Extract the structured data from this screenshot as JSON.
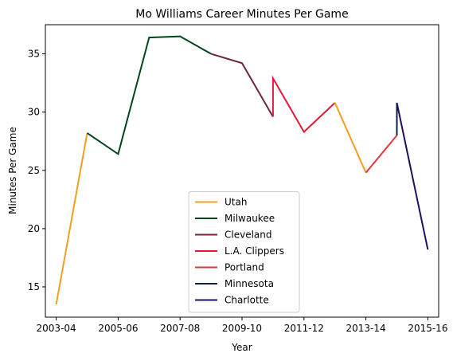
{
  "chart_data": {
    "type": "line",
    "title": "Mo Williams Career Minutes Per Game",
    "xlabel": "Year",
    "ylabel": "Minutes Per Game",
    "xlim": [
      -0.35,
      12.35
    ],
    "ylim": [
      12.4,
      37.5
    ],
    "x_ticks": [
      {
        "x": 0,
        "label": "2003-04"
      },
      {
        "x": 2,
        "label": "2005-06"
      },
      {
        "x": 4,
        "label": "2007-08"
      },
      {
        "x": 6,
        "label": "2009-10"
      },
      {
        "x": 8,
        "label": "2011-12"
      },
      {
        "x": 10,
        "label": "2013-14"
      },
      {
        "x": 12,
        "label": "2015-16"
      }
    ],
    "y_ticks": [
      15,
      20,
      25,
      30,
      35
    ],
    "legend_position": "lower-center",
    "grid": false,
    "series": [
      {
        "name": "Utah",
        "color": "#f0a020",
        "points": [
          [
            0,
            13.5
          ],
          [
            1,
            28.2
          ]
        ]
      },
      {
        "name": "Milwaukee",
        "color": "#00471b",
        "points": [
          [
            1,
            28.2
          ],
          [
            2,
            26.4
          ],
          [
            3,
            36.4
          ],
          [
            4,
            36.5
          ],
          [
            5,
            35.0
          ]
        ]
      },
      {
        "name": "Cleveland",
        "color": "#6f263d",
        "points": [
          [
            5,
            35.0
          ],
          [
            6,
            34.2
          ],
          [
            7,
            29.6
          ]
        ]
      },
      {
        "name": "L.A. Clippers",
        "color": "#e31837",
        "points": [
          [
            7,
            29.6
          ],
          [
            7,
            32.9
          ],
          [
            8,
            28.3
          ],
          [
            9,
            30.8
          ]
        ]
      },
      {
        "name": "Utah",
        "color": "#f0a020",
        "points": [
          [
            9,
            30.8
          ],
          [
            10,
            24.8
          ]
        ],
        "show_in_legend": false
      },
      {
        "name": "Portland",
        "color": "#e03a3e",
        "points": [
          [
            10,
            24.8
          ],
          [
            11,
            28.0
          ]
        ]
      },
      {
        "name": "Minnesota",
        "color": "#0c2340",
        "points": [
          [
            11,
            28.0
          ],
          [
            11,
            30.8
          ]
        ]
      },
      {
        "name": "Charlotte",
        "color": "#1d1160",
        "points": [
          [
            11,
            30.8
          ],
          [
            12,
            18.2
          ]
        ]
      }
    ],
    "legend": [
      {
        "name": "Utah",
        "color": "#f0a020"
      },
      {
        "name": "Milwaukee",
        "color": "#00471b"
      },
      {
        "name": "Cleveland",
        "color": "#6f263d"
      },
      {
        "name": "L.A. Clippers",
        "color": "#e31837"
      },
      {
        "name": "Portland",
        "color": "#e03a3e"
      },
      {
        "name": "Minnesota",
        "color": "#0c2340"
      },
      {
        "name": "Charlotte",
        "color": "#1d1160"
      }
    ]
  }
}
